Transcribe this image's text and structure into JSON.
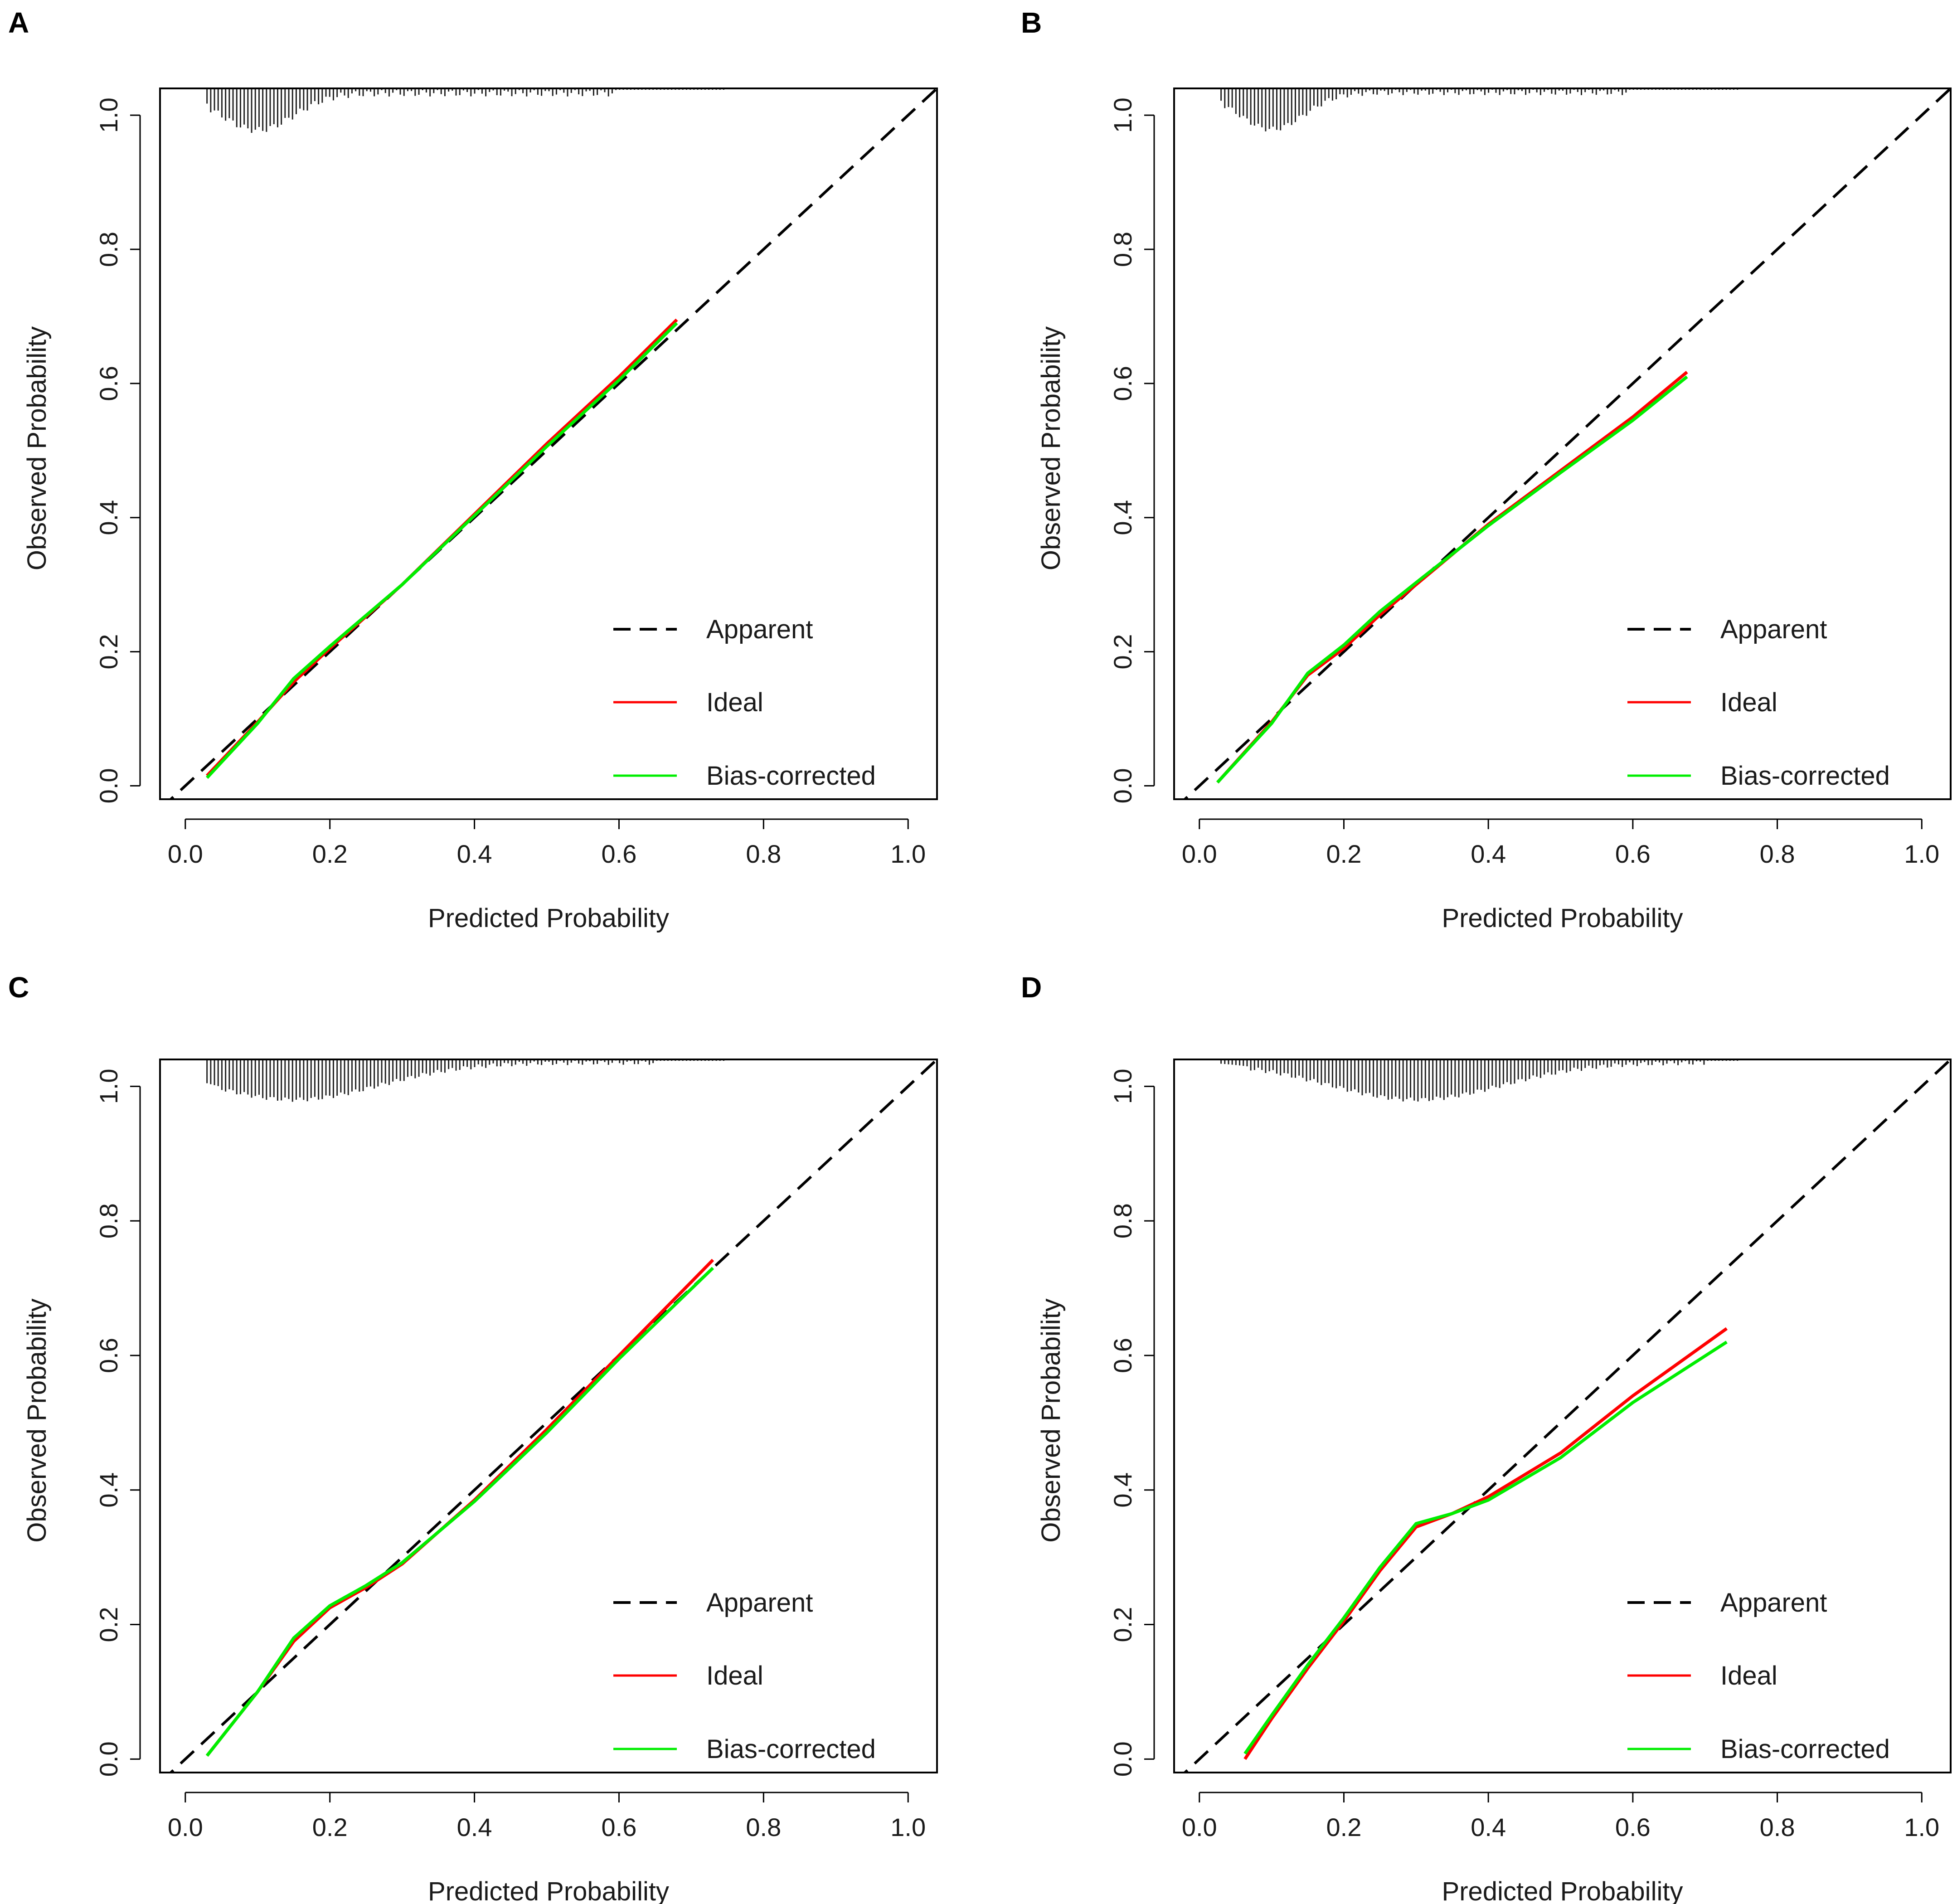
{
  "colors": {
    "apparent": "#000000",
    "ideal": "#ff0000",
    "bias_corrected": "#00ee00",
    "rug": "#222222",
    "frame": "#000000"
  },
  "chart_data": [
    {
      "panel": "A",
      "type": "line",
      "xlabel": "Predicted Probability",
      "ylabel": "Observed Probability",
      "xlim": [
        -0.035,
        1.04
      ],
      "ylim": [
        -0.02,
        1.04
      ],
      "xticks": [
        "0.0",
        "0.2",
        "0.4",
        "0.6",
        "0.8",
        "1.0"
      ],
      "yticks": [
        "0.0",
        "0.2",
        "0.4",
        "0.6",
        "0.8",
        "1.0"
      ],
      "legend_position": "bottom-right",
      "series": [
        {
          "name": "Apparent",
          "style": "dashed",
          "x": [
            -0.035,
            1.04
          ],
          "y": [
            -0.035,
            1.04
          ]
        },
        {
          "name": "Ideal",
          "style": "solid",
          "x": [
            0.03,
            0.1,
            0.15,
            0.2,
            0.3,
            0.4,
            0.5,
            0.6,
            0.68
          ],
          "y": [
            0.015,
            0.095,
            0.155,
            0.205,
            0.3,
            0.405,
            0.51,
            0.61,
            0.695
          ]
        },
        {
          "name": "Bias-corrected",
          "style": "solid",
          "x": [
            0.03,
            0.1,
            0.15,
            0.2,
            0.3,
            0.4,
            0.5,
            0.6,
            0.68
          ],
          "y": [
            0.012,
            0.093,
            0.16,
            0.208,
            0.3,
            0.403,
            0.506,
            0.605,
            0.69
          ]
        }
      ],
      "rug": {
        "center": 0.1,
        "spread": 0.05,
        "peak": 0.055,
        "tail": 0.012,
        "extent": [
          0.03,
          0.6
        ]
      }
    },
    {
      "panel": "B",
      "type": "line",
      "xlabel": "Predicted Probability",
      "ylabel": "Observed Probability",
      "xlim": [
        -0.035,
        1.04
      ],
      "ylim": [
        -0.02,
        1.04
      ],
      "xticks": [
        "0.0",
        "0.2",
        "0.4",
        "0.6",
        "0.8",
        "1.0"
      ],
      "yticks": [
        "0.0",
        "0.2",
        "0.4",
        "0.6",
        "0.8",
        "1.0"
      ],
      "legend_position": "bottom-right",
      "series": [
        {
          "name": "Apparent",
          "style": "dashed",
          "x": [
            -0.035,
            1.04
          ],
          "y": [
            -0.035,
            1.04
          ]
        },
        {
          "name": "Ideal",
          "style": "solid",
          "x": [
            0.025,
            0.1,
            0.15,
            0.2,
            0.25,
            0.3,
            0.4,
            0.5,
            0.6,
            0.675
          ],
          "y": [
            0.005,
            0.095,
            0.165,
            0.205,
            0.255,
            0.3,
            0.39,
            0.47,
            0.55,
            0.617
          ]
        },
        {
          "name": "Bias-corrected",
          "style": "solid",
          "x": [
            0.025,
            0.1,
            0.15,
            0.2,
            0.25,
            0.3,
            0.4,
            0.5,
            0.6,
            0.675
          ],
          "y": [
            0.005,
            0.093,
            0.168,
            0.21,
            0.26,
            0.303,
            0.388,
            0.467,
            0.545,
            0.61
          ]
        }
      ],
      "rug": {
        "center": 0.1,
        "spread": 0.045,
        "peak": 0.055,
        "tail": 0.01,
        "extent": [
          0.03,
          0.6
        ]
      }
    },
    {
      "panel": "C",
      "type": "line",
      "xlabel": "Predicted Probability",
      "ylabel": "Observed Probability",
      "xlim": [
        -0.035,
        1.04
      ],
      "ylim": [
        -0.02,
        1.04
      ],
      "xticks": [
        "0.0",
        "0.2",
        "0.4",
        "0.6",
        "0.8",
        "1.0"
      ],
      "yticks": [
        "0.0",
        "0.2",
        "0.4",
        "0.6",
        "0.8",
        "1.0"
      ],
      "legend_position": "bottom-right",
      "series": [
        {
          "name": "Apparent",
          "style": "dashed",
          "x": [
            -0.035,
            1.04
          ],
          "y": [
            -0.035,
            1.04
          ]
        },
        {
          "name": "Ideal",
          "style": "solid",
          "x": [
            0.03,
            0.1,
            0.15,
            0.2,
            0.25,
            0.3,
            0.4,
            0.5,
            0.6,
            0.73
          ],
          "y": [
            0.005,
            0.1,
            0.175,
            0.225,
            0.255,
            0.29,
            0.385,
            0.49,
            0.6,
            0.742
          ]
        },
        {
          "name": "Bias-corrected",
          "style": "solid",
          "x": [
            0.03,
            0.1,
            0.15,
            0.2,
            0.25,
            0.3,
            0.4,
            0.5,
            0.6,
            0.73
          ],
          "y": [
            0.005,
            0.1,
            0.18,
            0.228,
            0.258,
            0.292,
            0.383,
            0.485,
            0.595,
            0.73
          ]
        }
      ],
      "rug": {
        "center": 0.15,
        "spread": 0.12,
        "peak": 0.055,
        "tail": 0.008,
        "extent": [
          0.05,
          0.65
        ]
      }
    },
    {
      "panel": "D",
      "type": "line",
      "xlabel": "Predicted Probability",
      "ylabel": "Observed Probability",
      "xlim": [
        -0.035,
        1.04
      ],
      "ylim": [
        -0.02,
        1.04
      ],
      "xticks": [
        "0.0",
        "0.2",
        "0.4",
        "0.6",
        "0.8",
        "1.0"
      ],
      "yticks": [
        "0.0",
        "0.2",
        "0.4",
        "0.6",
        "0.8",
        "1.0"
      ],
      "legend_position": "bottom-right",
      "series": [
        {
          "name": "Apparent",
          "style": "dashed",
          "x": [
            -0.035,
            1.04
          ],
          "y": [
            -0.035,
            1.04
          ]
        },
        {
          "name": "Ideal",
          "style": "solid",
          "x": [
            0.063,
            0.1,
            0.15,
            0.2,
            0.25,
            0.3,
            0.35,
            0.4,
            0.5,
            0.6,
            0.73
          ],
          "y": [
            0.0,
            0.06,
            0.135,
            0.205,
            0.28,
            0.345,
            0.365,
            0.39,
            0.455,
            0.54,
            0.64
          ]
        },
        {
          "name": "Bias-corrected",
          "style": "solid",
          "x": [
            0.063,
            0.1,
            0.15,
            0.2,
            0.25,
            0.3,
            0.35,
            0.4,
            0.5,
            0.6,
            0.73
          ],
          "y": [
            0.008,
            0.065,
            0.14,
            0.21,
            0.285,
            0.35,
            0.365,
            0.385,
            0.448,
            0.53,
            0.62
          ]
        }
      ],
      "rug": {
        "center": 0.3,
        "spread": 0.12,
        "peak": 0.055,
        "tail": 0.008,
        "extent": [
          0.07,
          0.7
        ]
      }
    }
  ]
}
